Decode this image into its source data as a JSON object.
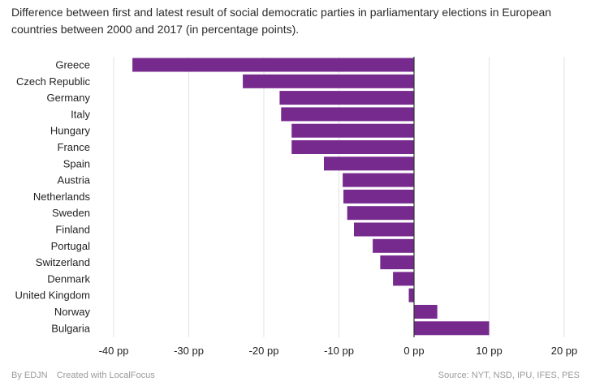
{
  "chart_data": {
    "type": "bar",
    "orientation": "horizontal",
    "title": "Difference between first and latest result of social democratic parties in parliamentary elections in European countries between 2000 and 2017 (in percentage points).",
    "categories": [
      "Greece",
      "Czech Republic",
      "Germany",
      "Italy",
      "Hungary",
      "France",
      "Spain",
      "Austria",
      "Netherlands",
      "Sweden",
      "Finland",
      "Portugal",
      "Switzerland",
      "Denmark",
      "United Kingdom",
      "Norway",
      "Bulgaria"
    ],
    "values": [
      -37.5,
      -22.8,
      -17.9,
      -17.7,
      -16.3,
      -16.3,
      -12.0,
      -9.5,
      -9.4,
      -8.9,
      -8.0,
      -5.5,
      -4.5,
      -2.8,
      -0.7,
      3.1,
      10.0
    ],
    "xlim": [
      -40,
      20
    ],
    "ticks": [
      -40,
      -30,
      -20,
      -10,
      0,
      10,
      20
    ],
    "tick_labels": [
      "-40 pp",
      "-30 pp",
      "-20 pp",
      "-10 pp",
      "0 pp",
      "10 pp",
      "20 pp"
    ],
    "xlabel": "",
    "ylabel": "",
    "grid": true,
    "bar_color": "#762a8e",
    "grid_color": "#e3e3e3",
    "zero_line_color": "#333333"
  },
  "footer": {
    "by": "By EDJN",
    "created_with": "Created with LocalFocus",
    "source": "Source: NYT, NSD, IPU, IFES, PES"
  }
}
